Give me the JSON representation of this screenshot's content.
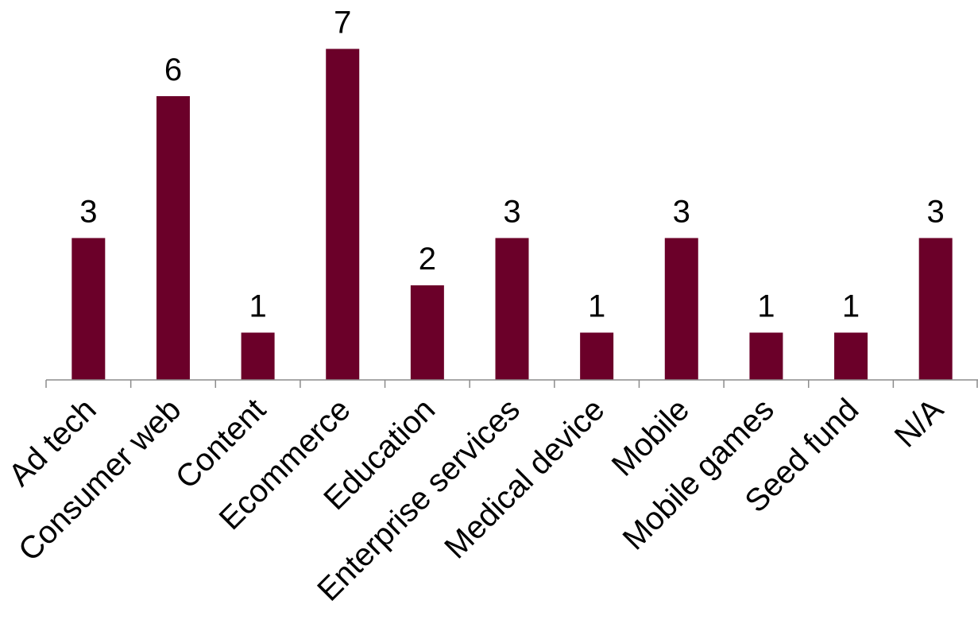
{
  "chart_data": {
    "type": "bar",
    "categories": [
      "Ad tech",
      "Consumer web",
      "Content",
      "Ecommerce",
      "Education",
      "Enterprise services",
      "Medical device",
      "Mobile",
      "Mobile games",
      "Seed fund",
      "N/A"
    ],
    "values": [
      3,
      6,
      1,
      7,
      2,
      3,
      1,
      3,
      1,
      1,
      3
    ],
    "data_labels": [
      "3",
      "6",
      "1",
      "7",
      "2",
      "3",
      "1",
      "3",
      "1",
      "1",
      "3"
    ],
    "title": "",
    "xlabel": "",
    "ylabel": "",
    "ylim": [
      0,
      7
    ],
    "grid": false,
    "legend": "none",
    "bar_color": "#6B0029"
  }
}
